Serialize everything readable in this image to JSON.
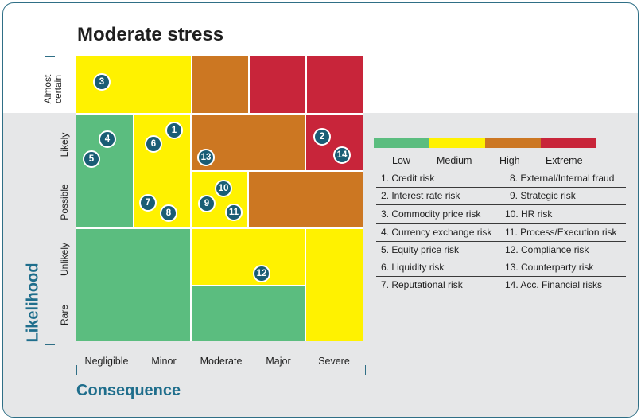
{
  "title": "Moderate stress",
  "colors": {
    "low": "#5bbd7f",
    "medium": "#fff200",
    "high": "#cc7722",
    "extreme": "#c8253a",
    "accent": "#1f6e8c",
    "marker": "#1a5d75"
  },
  "likelihood_levels": [
    "Almost certain",
    "Likely",
    "Possible",
    "Unlikely",
    "Rare"
  ],
  "consequence_levels": [
    "Negligible",
    "Minor",
    "Moderate",
    "Major",
    "Severe"
  ],
  "axis": {
    "y_title": "Likelihood",
    "x_title": "Consequence"
  },
  "matrix_rating": [
    [
      "Medium",
      "Medium",
      "High",
      "Extreme",
      "Extreme"
    ],
    [
      "Low",
      "Medium",
      "High",
      "High",
      "Extreme"
    ],
    [
      "Low",
      "Medium",
      "Medium",
      "High",
      "High"
    ],
    [
      "Low",
      "Low",
      "Medium",
      "Medium",
      "Medium"
    ],
    [
      "Low",
      "Low",
      "Low",
      "Low",
      "Medium"
    ]
  ],
  "markers": [
    {
      "id": "1",
      "likelihood": "Likely",
      "consequence": "Minor"
    },
    {
      "id": "2",
      "likelihood": "Likely",
      "consequence": "Severe"
    },
    {
      "id": "3",
      "likelihood": "Almost certain",
      "consequence": "Negligible"
    },
    {
      "id": "4",
      "likelihood": "Likely",
      "consequence": "Negligible"
    },
    {
      "id": "5",
      "likelihood": "Likely",
      "consequence": "Negligible"
    },
    {
      "id": "6",
      "likelihood": "Likely",
      "consequence": "Minor"
    },
    {
      "id": "7",
      "likelihood": "Possible",
      "consequence": "Minor"
    },
    {
      "id": "8",
      "likelihood": "Possible",
      "consequence": "Minor"
    },
    {
      "id": "9",
      "likelihood": "Possible",
      "consequence": "Moderate"
    },
    {
      "id": "10",
      "likelihood": "Possible",
      "consequence": "Moderate"
    },
    {
      "id": "11",
      "likelihood": "Possible",
      "consequence": "Moderate"
    },
    {
      "id": "12",
      "likelihood": "Unlikely",
      "consequence": "Moderate"
    },
    {
      "id": "13",
      "likelihood": "Likely",
      "consequence": "Moderate"
    },
    {
      "id": "14",
      "likelihood": "Likely",
      "consequence": "Severe"
    }
  ],
  "legend": {
    "low": "Low",
    "medium": "Medium",
    "high": "High",
    "extreme": "Extreme"
  },
  "risks": [
    "1. Credit risk",
    "2. Interest rate risk",
    "3. Commodity price risk",
    "4. Currency exchange risk",
    "5. Equity price risk",
    "6. Liquidity risk",
    "7. Reputational risk",
    "8. External/Internal fraud",
    "9. Strategic risk",
    "10. HR risk",
    "11. Process/Execution risk",
    "12. Compliance risk",
    "13. Counterparty risk",
    "14. Acc. Financial risks"
  ]
}
